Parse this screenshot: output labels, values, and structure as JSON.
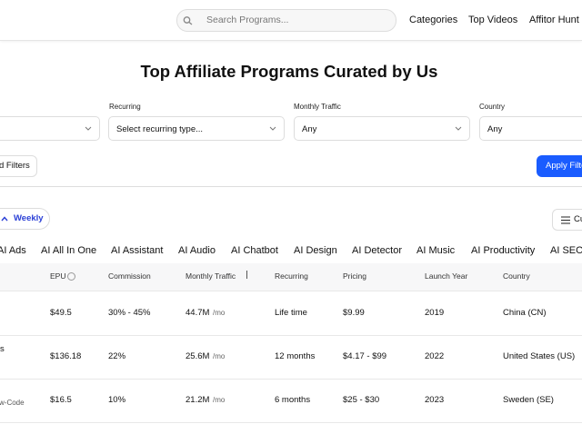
{
  "header": {
    "search_placeholder": "Search Programs...",
    "nav": [
      "Categories",
      "Top Videos",
      "Affitor Hunt"
    ]
  },
  "title": "Top Affiliate Programs Curated by Us",
  "filters": [
    {
      "label": "Recurring",
      "value": "Select recurring type..."
    },
    {
      "label": "Monthly Traffic",
      "value": "Any"
    },
    {
      "label": "Country",
      "value": "Any"
    }
  ],
  "buttons": {
    "filters": "d Filters",
    "apply": "Apply Filte",
    "period": "Weekly",
    "customize": "Cu"
  },
  "tabs": [
    "AI Ads",
    "AI All In One",
    "AI Assistant",
    "AI Audio",
    "AI Chatbot",
    "AI Design",
    "AI Detector",
    "AI Music",
    "AI Productivity",
    "AI SEO"
  ],
  "table": {
    "columns": [
      "EPU",
      "Commission",
      "Monthly Traffic",
      "Recurring",
      "Pricing",
      "Launch Year",
      "Country"
    ],
    "rows": [
      {
        "epu": "$49.5",
        "commission": "30% - 45%",
        "traffic": "44.7M",
        "traffic_unit": "/mo",
        "recurring": "Life time",
        "pricing": "$9.99",
        "launch_year": "2019",
        "country": "China (CN)"
      },
      {
        "name": "s",
        "epu": "$136.18",
        "commission": "22%",
        "traffic": "25.6M",
        "traffic_unit": "/mo",
        "recurring": "12 months",
        "pricing": "$4.17 - $99",
        "launch_year": "2022",
        "country": "United States (US)"
      },
      {
        "name": "w-Code",
        "epu": "$16.5",
        "commission": "10%",
        "traffic": "21.2M",
        "traffic_unit": "/mo",
        "recurring": "6 months",
        "pricing": "$25 - $30",
        "launch_year": "2023",
        "country": "Sweden (SE)"
      }
    ]
  }
}
